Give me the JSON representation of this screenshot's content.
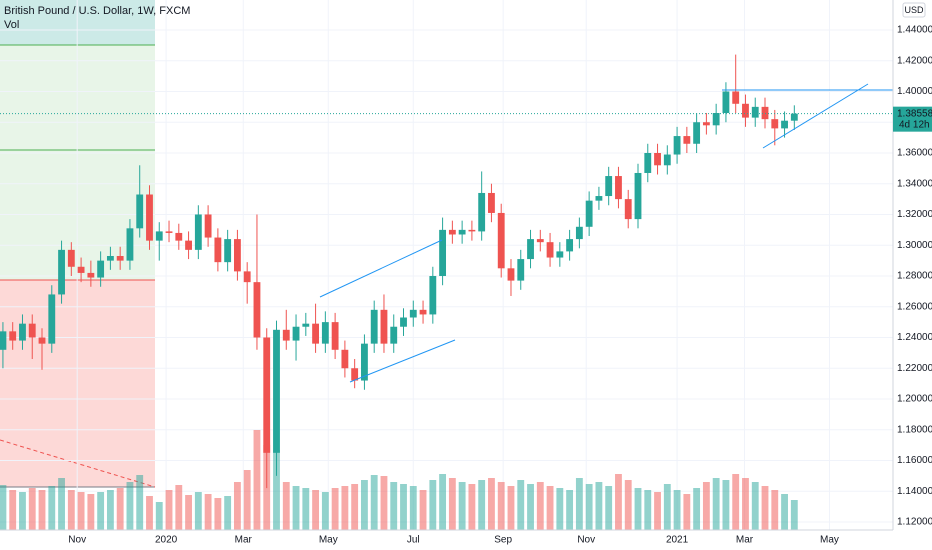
{
  "chart_data": {
    "type": "candlestick",
    "title": "British Pound / U.S. Dollar, 1W, FXCM",
    "indicator": "Vol",
    "currency": "USD",
    "up_color": "#26a69a",
    "down_color": "#ef5350",
    "grid": true,
    "categories": [
      null,
      null,
      null,
      null,
      null,
      null,
      null,
      null,
      null,
      null,
      null,
      null,
      null,
      null,
      null,
      null,
      null,
      null,
      null,
      null,
      null,
      null,
      null,
      null,
      null,
      null,
      null,
      null,
      null,
      null,
      null,
      null,
      null,
      null,
      null,
      null,
      null,
      null,
      null,
      null,
      null,
      null,
      null,
      null,
      null,
      null,
      null,
      null,
      null,
      null,
      null,
      null,
      null,
      null,
      null,
      null,
      null,
      null,
      null,
      null,
      null,
      null,
      null,
      null,
      null,
      null,
      null,
      null,
      null,
      null,
      null,
      null,
      null,
      null,
      null,
      null,
      null,
      null,
      null,
      null,
      null,
      null
    ],
    "open": [
      1.232,
      1.244,
      1.238,
      1.249,
      1.24,
      1.236,
      1.268,
      1.297,
      1.286,
      1.282,
      1.279,
      1.29,
      1.293,
      1.29,
      1.311,
      1.333,
      1.303,
      1.309,
      1.308,
      1.303,
      1.297,
      1.32,
      1.305,
      1.289,
      1.304,
      1.283,
      1.276,
      1.24,
      1.165,
      1.245,
      1.238,
      1.247,
      1.249,
      1.236,
      1.25,
      1.232,
      1.22,
      1.212,
      1.236,
      1.258,
      1.236,
      1.247,
      1.253,
      1.258,
      1.255,
      1.28,
      1.31,
      1.307,
      1.31,
      1.309,
      1.334,
      1.321,
      1.285,
      1.277,
      1.291,
      1.304,
      1.302,
      1.292,
      1.296,
      1.304,
      1.312,
      1.329,
      1.332,
      1.345,
      1.33,
      1.317,
      1.347,
      1.36,
      1.352,
      1.359,
      1.371,
      1.366,
      1.38,
      1.378,
      1.386,
      1.4,
      1.392,
      1.383,
      1.39,
      1.382,
      1.376,
      1.381
    ],
    "high": [
      1.25,
      1.25,
      1.255,
      1.255,
      1.246,
      1.274,
      1.303,
      1.302,
      1.292,
      1.29,
      1.296,
      1.299,
      1.299,
      1.317,
      1.352,
      1.339,
      1.315,
      1.316,
      1.314,
      1.309,
      1.326,
      1.326,
      1.311,
      1.31,
      1.31,
      1.289,
      1.32,
      1.246,
      1.251,
      1.258,
      1.255,
      1.256,
      1.262,
      1.257,
      1.256,
      1.238,
      1.226,
      1.242,
      1.264,
      1.268,
      1.255,
      1.259,
      1.264,
      1.264,
      1.286,
      1.318,
      1.316,
      1.316,
      1.316,
      1.348,
      1.34,
      1.327,
      1.291,
      1.297,
      1.31,
      1.31,
      1.308,
      1.302,
      1.31,
      1.318,
      1.335,
      1.338,
      1.351,
      1.351,
      1.336,
      1.353,
      1.366,
      1.366,
      1.365,
      1.377,
      1.377,
      1.386,
      1.386,
      1.392,
      1.406,
      1.424,
      1.398,
      1.396,
      1.396,
      1.388,
      1.387,
      1.391
    ],
    "low": [
      1.22,
      1.232,
      1.232,
      1.226,
      1.219,
      1.23,
      1.262,
      1.28,
      1.276,
      1.273,
      1.273,
      1.284,
      1.284,
      1.284,
      1.305,
      1.297,
      1.29,
      1.302,
      1.297,
      1.291,
      1.291,
      1.299,
      1.283,
      1.283,
      1.277,
      1.262,
      1.232,
      1.142,
      1.15,
      1.232,
      1.225,
      1.241,
      1.23,
      1.23,
      1.226,
      1.214,
      1.207,
      1.206,
      1.23,
      1.23,
      1.23,
      1.241,
      1.247,
      1.249,
      1.249,
      1.274,
      1.301,
      1.301,
      1.303,
      1.303,
      1.315,
      1.279,
      1.267,
      1.271,
      1.285,
      1.296,
      1.286,
      1.286,
      1.29,
      1.298,
      1.306,
      1.323,
      1.326,
      1.324,
      1.311,
      1.311,
      1.341,
      1.346,
      1.346,
      1.353,
      1.36,
      1.36,
      1.372,
      1.372,
      1.38,
      1.386,
      1.377,
      1.377,
      1.376,
      1.365,
      1.37,
      1.375
    ],
    "close": [
      1.244,
      1.238,
      1.249,
      1.24,
      1.236,
      1.268,
      1.297,
      1.286,
      1.282,
      1.279,
      1.29,
      1.293,
      1.29,
      1.311,
      1.333,
      1.303,
      1.309,
      1.308,
      1.303,
      1.297,
      1.32,
      1.305,
      1.289,
      1.304,
      1.283,
      1.276,
      1.24,
      1.165,
      1.245,
      1.238,
      1.247,
      1.249,
      1.236,
      1.25,
      1.232,
      1.22,
      1.212,
      1.236,
      1.258,
      1.236,
      1.247,
      1.253,
      1.258,
      1.255,
      1.28,
      1.31,
      1.307,
      1.31,
      1.309,
      1.334,
      1.321,
      1.285,
      1.277,
      1.291,
      1.304,
      1.302,
      1.292,
      1.296,
      1.304,
      1.312,
      1.329,
      1.332,
      1.345,
      1.33,
      1.317,
      1.347,
      1.36,
      1.352,
      1.359,
      1.371,
      1.366,
      1.38,
      1.378,
      1.386,
      1.4,
      1.392,
      1.383,
      1.39,
      1.382,
      1.376,
      1.381,
      1.3856
    ],
    "volume": [
      45,
      40,
      38,
      42,
      40,
      44,
      52,
      40,
      38,
      36,
      38,
      40,
      42,
      48,
      55,
      34,
      28,
      40,
      45,
      35,
      38,
      36,
      32,
      34,
      48,
      60,
      100,
      85,
      80,
      48,
      44,
      42,
      40,
      38,
      42,
      44,
      46,
      50,
      55,
      54,
      48,
      46,
      44,
      40,
      50,
      56,
      52,
      48,
      46,
      50,
      52,
      48,
      44,
      50,
      46,
      48,
      44,
      42,
      40,
      52,
      46,
      48,
      44,
      56,
      50,
      42,
      40,
      38,
      46,
      40,
      36,
      42,
      48,
      52,
      50,
      56,
      52,
      48,
      44,
      40,
      36,
      30
    ],
    "volume_lim": [
      0,
      120
    ],
    "ylim": [
      1.1148,
      1.4595
    ],
    "yticks": [
      {
        "value": 1.44,
        "label": "1.44000"
      },
      {
        "value": 1.42,
        "label": "1.42000"
      },
      {
        "value": 1.4,
        "label": "1.40000"
      },
      {
        "value": 1.38,
        "label": "1.38000"
      },
      {
        "value": 1.36,
        "label": "1.36000"
      },
      {
        "value": 1.34,
        "label": "1.34000"
      },
      {
        "value": 1.32,
        "label": "1.32000"
      },
      {
        "value": 1.3,
        "label": "1.30000"
      },
      {
        "value": 1.28,
        "label": "1.28000"
      },
      {
        "value": 1.26,
        "label": "1.26000"
      },
      {
        "value": 1.24,
        "label": "1.24000"
      },
      {
        "value": 1.22,
        "label": "1.22000"
      },
      {
        "value": 1.2,
        "label": "1.20000"
      },
      {
        "value": 1.18,
        "label": "1.18000"
      },
      {
        "value": 1.16,
        "label": "1.16000"
      },
      {
        "value": 1.14,
        "label": "1.14000"
      },
      {
        "value": 1.12,
        "label": "1.12000"
      }
    ],
    "xlim": [
      -0.3,
      91.1
    ],
    "xticks": [
      {
        "value": 7.6,
        "label": "Nov"
      },
      {
        "value": 16.7,
        "label": "2020"
      },
      {
        "value": 24.6,
        "label": "Mar"
      },
      {
        "value": 33.3,
        "label": "May"
      },
      {
        "value": 42.0,
        "label": "Jul"
      },
      {
        "value": 51.2,
        "label": "Sep"
      },
      {
        "value": 59.7,
        "label": "Nov"
      },
      {
        "value": 69.0,
        "label": "2021"
      },
      {
        "value": 75.9,
        "label": "Mar"
      },
      {
        "value": 84.6,
        "label": "May"
      }
    ],
    "last_price": 1.38558,
    "countdown": "4d 12h"
  }
}
